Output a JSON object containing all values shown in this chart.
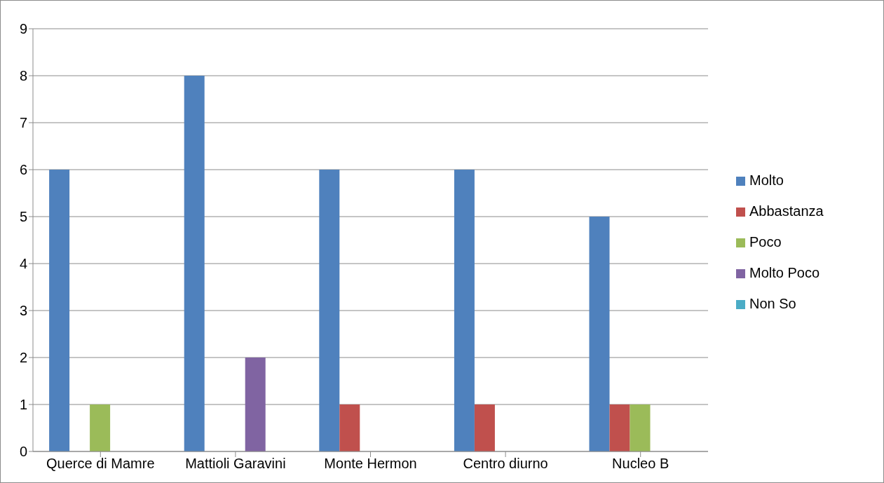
{
  "chart_data": {
    "type": "bar",
    "categories": [
      "Querce di Mamre",
      "Mattioli Garavini",
      "Monte Hermon",
      "Centro diurno",
      "Nucleo B"
    ],
    "series": [
      {
        "name": "Molto",
        "color": "#4f81bd",
        "values": [
          6,
          8,
          6,
          6,
          5
        ]
      },
      {
        "name": "Abbastanza",
        "color": "#c0504d",
        "values": [
          0,
          0,
          1,
          1,
          1
        ]
      },
      {
        "name": "Poco",
        "color": "#9bbb59",
        "values": [
          1,
          0,
          0,
          0,
          1
        ]
      },
      {
        "name": "Molto Poco",
        "color": "#8064a2",
        "values": [
          0,
          2,
          0,
          0,
          0
        ]
      },
      {
        "name": "Non So",
        "color": "#4bacc6",
        "values": [
          0,
          0,
          0,
          0,
          0
        ]
      }
    ],
    "ylim": [
      0,
      9
    ],
    "yticks": [
      0,
      1,
      2,
      3,
      4,
      5,
      6,
      7,
      8,
      9
    ],
    "grid": "y",
    "legend": "right"
  }
}
